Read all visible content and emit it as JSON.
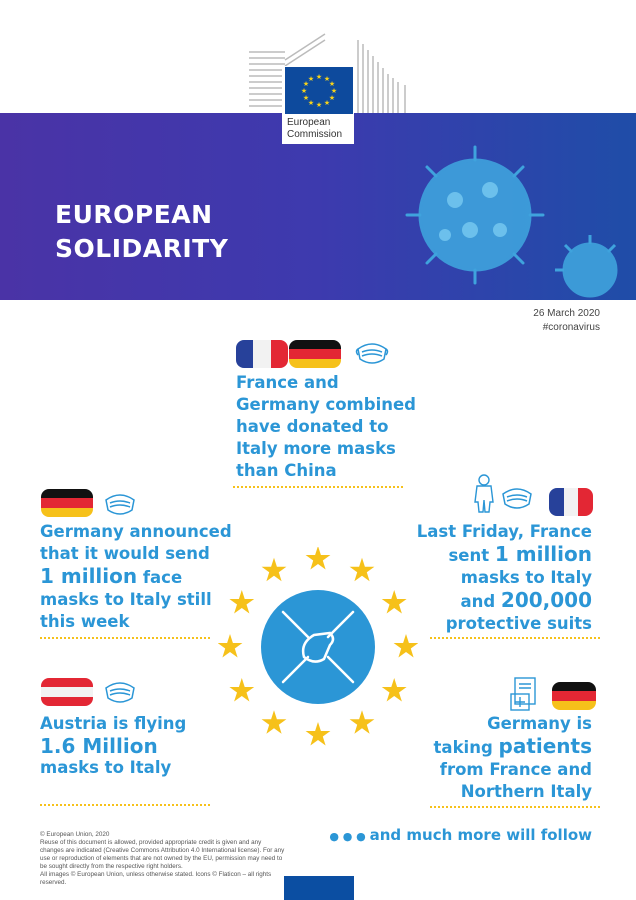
{
  "logo": {
    "line1": "European",
    "line2": "Commission"
  },
  "title": {
    "line1": "EUROPEAN",
    "line2": "SOLIDARITY"
  },
  "meta": {
    "date": "26 March 2020",
    "hashtag": "#coronavirus"
  },
  "blocks": {
    "france_germany": {
      "lines": [
        "France and",
        "Germany combined",
        "have donated to",
        "Italy more masks",
        "than China"
      ]
    },
    "germany_masks": {
      "l1": "Germany announced",
      "l2": "that it would send",
      "l3_big": "1 million",
      "l3_rest": " face",
      "l4": "masks to Italy still",
      "l5": "this week"
    },
    "france_sent": {
      "l1": "Last Friday, France",
      "l2_a": "sent ",
      "l2_big": "1 million",
      "l3": "masks to Italy",
      "l4_a": "and ",
      "l4_big": "200,000",
      "l5": "protective suits"
    },
    "austria": {
      "l1": "Austria is flying",
      "l2_big": "1.6 Million",
      "l3": "masks to Italy"
    },
    "germany_patients": {
      "l1": "Germany is",
      "l2_a": "taking ",
      "l2_big": "patients",
      "l3": "from France and",
      "l4": "Northern Italy"
    }
  },
  "follow": "and much more will follow",
  "footer": {
    "l1": "© European Union, 2020",
    "l2": "Reuse of this document is allowed, provided appropriate credit is given and any changes are indicated (Creative Commons Attribution 4.0 International license). For any use or reproduction of elements that are not owned by the EU, permission may need to be sought directly from the respective right holders.",
    "l3": "All images © European Union, unless otherwise stated. Icons © Flaticon – all rights reserved."
  },
  "colors": {
    "accent": "#2b96d6",
    "star": "#f6c11a",
    "banner_left": "#4a33a6",
    "banner_right": "#1f4da8"
  }
}
